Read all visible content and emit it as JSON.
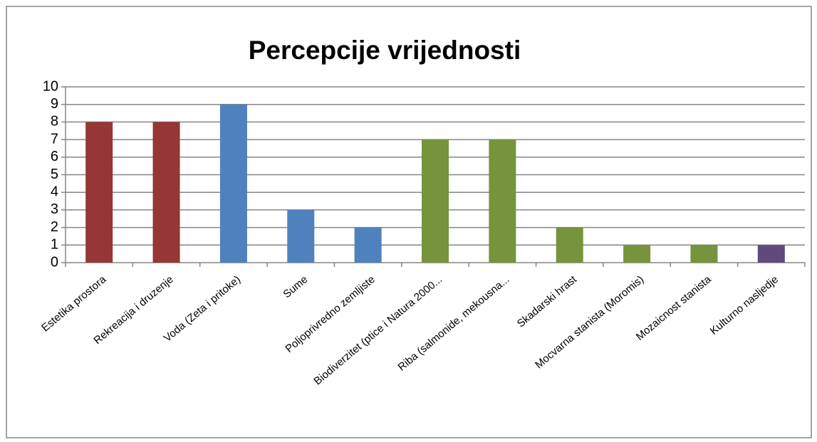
{
  "chart_data": {
    "type": "bar",
    "title": "Percepcije vrijednosti",
    "categories": [
      "Estetika prostora",
      "Rekreacija i druzenje",
      "Voda (Zeta i pritoke)",
      "Sume",
      "Poljoprivredno zemljiste",
      "Biodiverzitet (ptice i Natura 2000...",
      "Riba (salmonide, mekousna...",
      "Skadarski hrast",
      "Mocvarna stanista (Moromis)",
      "Mozaicnost stanista",
      "Kulturno nasljedje"
    ],
    "values": [
      8,
      8,
      9,
      3,
      2,
      7,
      7,
      2,
      1,
      1,
      1
    ],
    "colors": [
      "#953735",
      "#953735",
      "#4f81bd",
      "#4f81bd",
      "#4f81bd",
      "#77933c",
      "#77933c",
      "#77933c",
      "#77933c",
      "#77933c",
      "#604a7b"
    ],
    "ylim": [
      0,
      10
    ],
    "yticks": [
      0,
      1,
      2,
      3,
      4,
      5,
      6,
      7,
      8,
      9,
      10
    ],
    "grid": true
  }
}
